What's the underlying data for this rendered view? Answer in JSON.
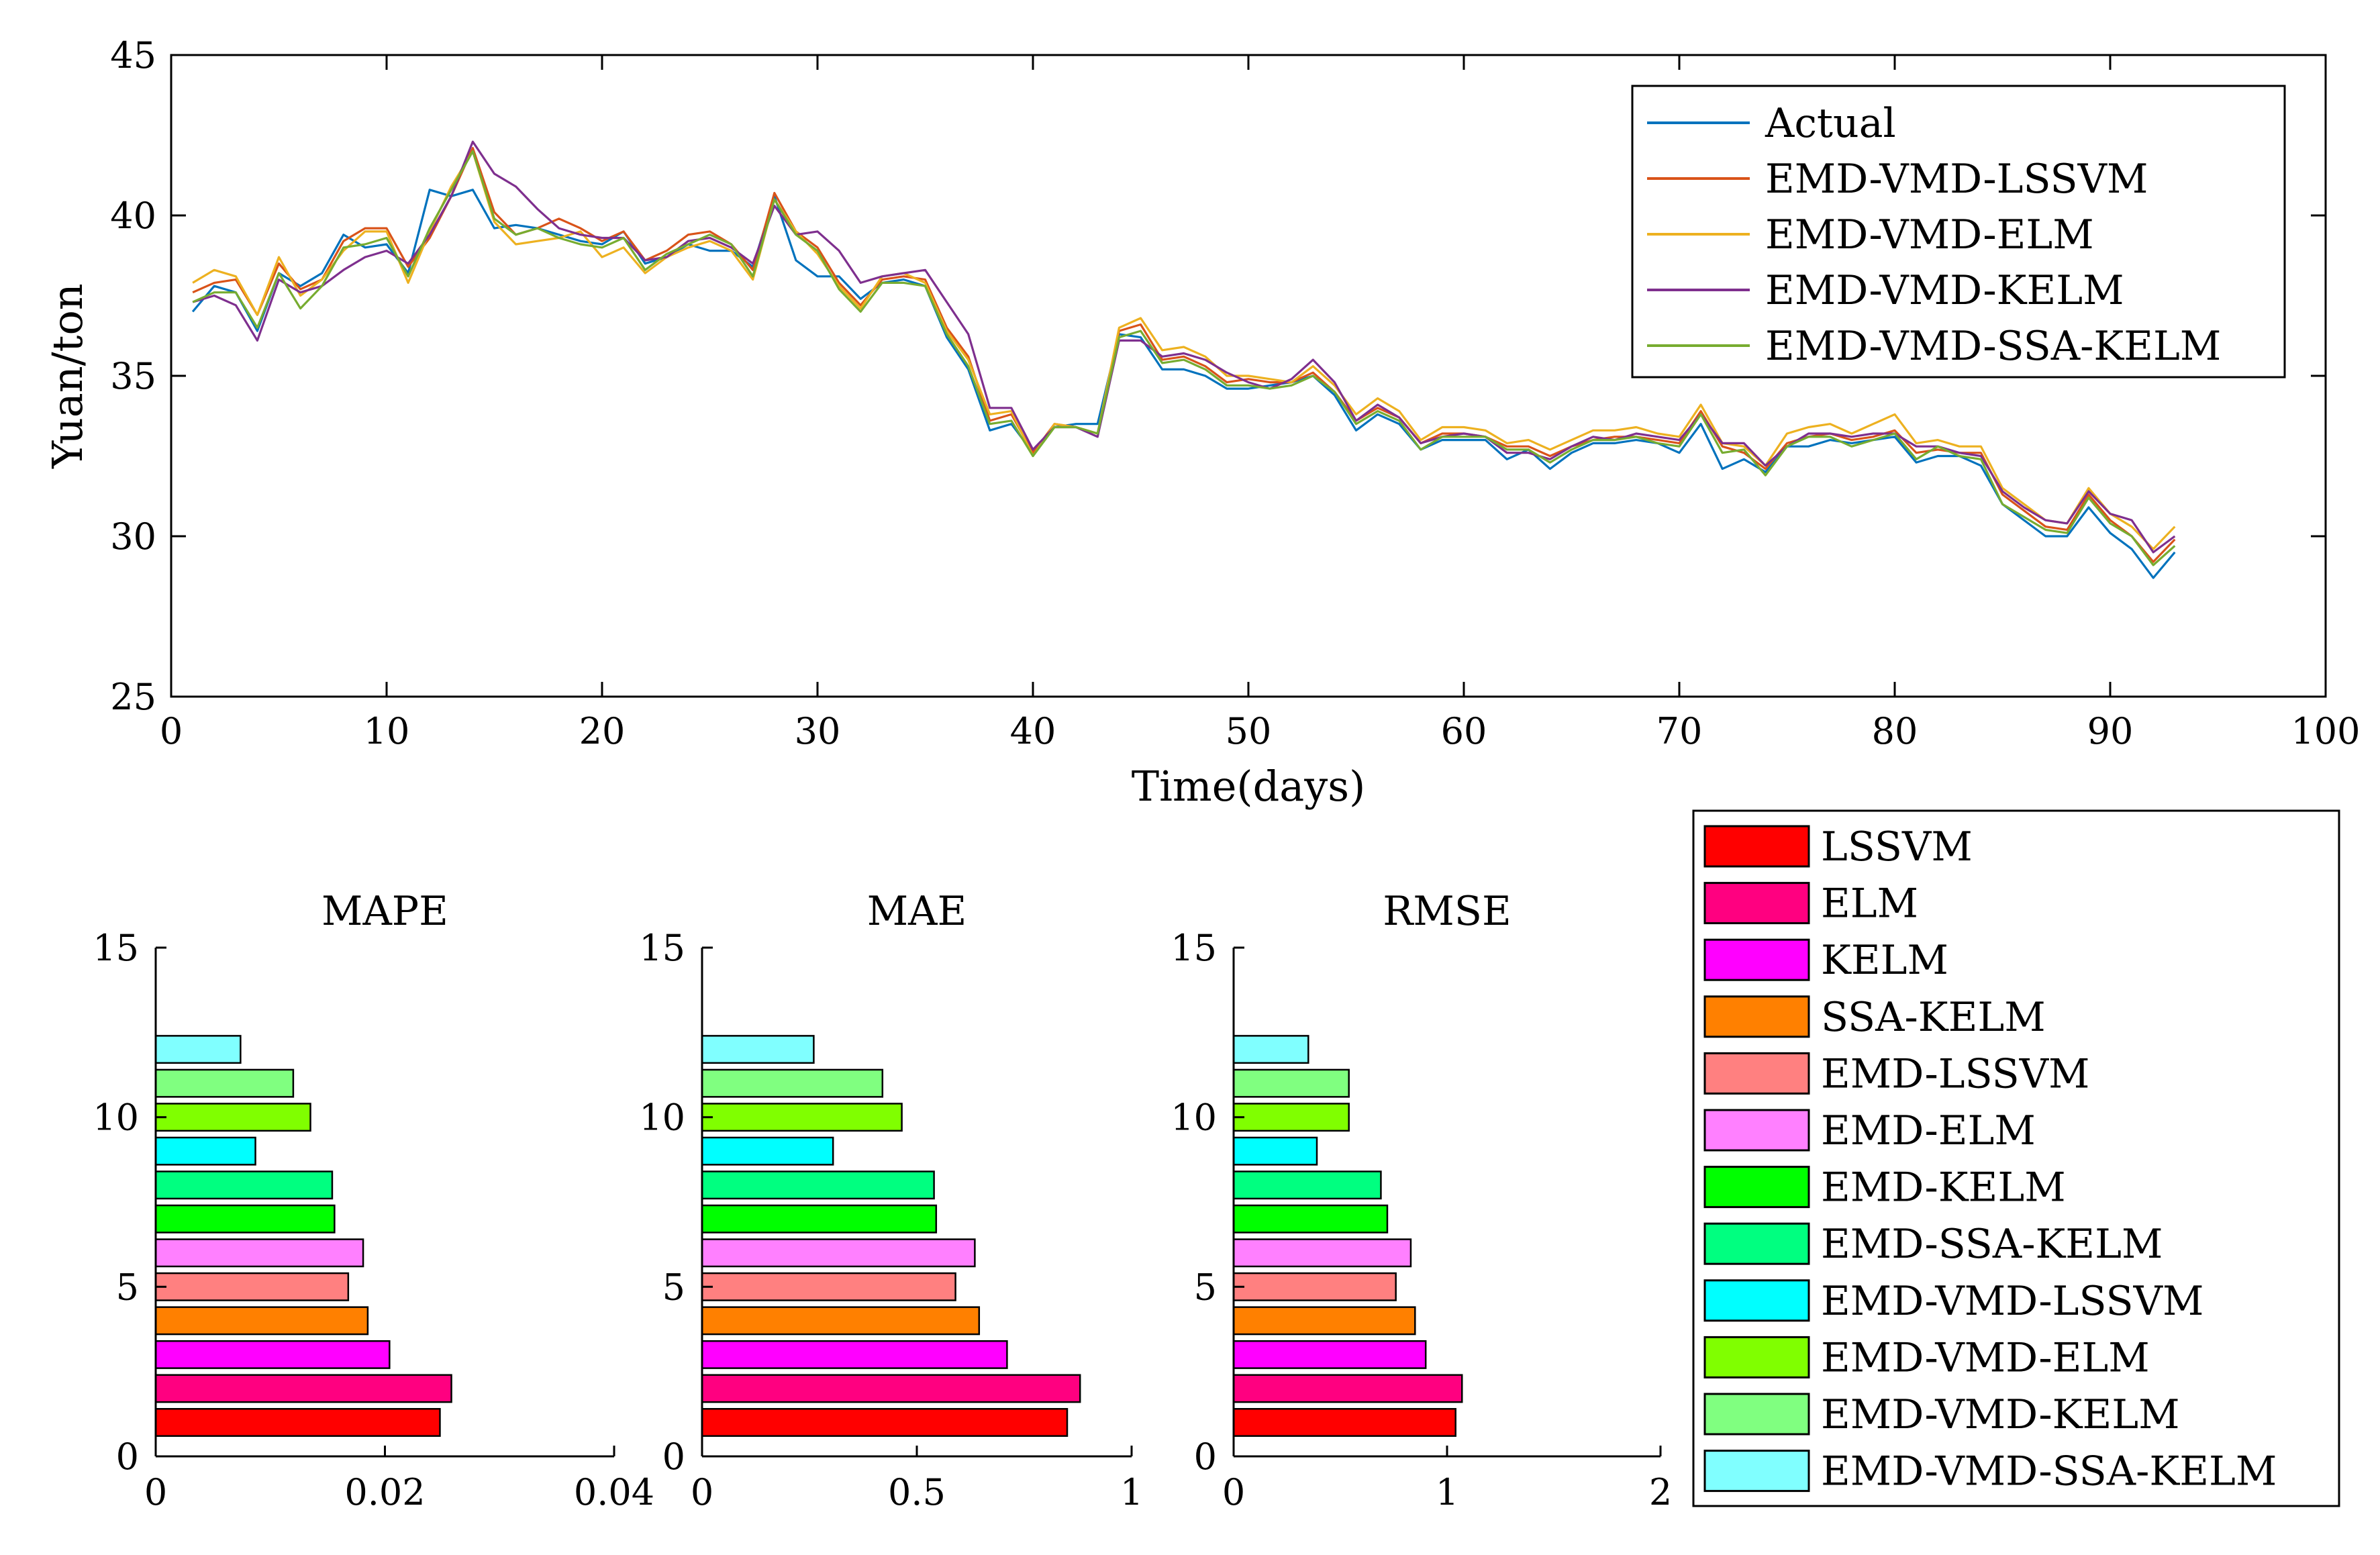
{
  "chart_data": [
    {
      "type": "line",
      "title": "",
      "xlabel": "Time(days)",
      "ylabel": "Yuan/ton",
      "xlim": [
        0,
        100
      ],
      "ylim": [
        25,
        45
      ],
      "xticks": [
        0,
        10,
        20,
        30,
        40,
        50,
        60,
        70,
        80,
        90,
        100
      ],
      "yticks": [
        25,
        30,
        35,
        40,
        45
      ],
      "grid": false,
      "legend_position": "top-right",
      "x": [
        1,
        2,
        3,
        4,
        5,
        6,
        7,
        8,
        9,
        10,
        11,
        12,
        13,
        14,
        15,
        16,
        17,
        18,
        19,
        20,
        21,
        22,
        23,
        24,
        25,
        26,
        27,
        28,
        29,
        30,
        31,
        32,
        33,
        34,
        35,
        36,
        37,
        38,
        39,
        40,
        41,
        42,
        43,
        44,
        45,
        46,
        47,
        48,
        49,
        50,
        51,
        52,
        53,
        54,
        55,
        56,
        57,
        58,
        59,
        60,
        61,
        62,
        63,
        64,
        65,
        66,
        67,
        68,
        69,
        70,
        71,
        72,
        73,
        74,
        75,
        76,
        77,
        78,
        79,
        80,
        81,
        82,
        83,
        84,
        85,
        86,
        87,
        88,
        89,
        90,
        91,
        92,
        93
      ],
      "series": [
        {
          "name": "Actual",
          "color": "#0072BD",
          "values": [
            37.0,
            37.8,
            37.6,
            36.4,
            38.2,
            37.8,
            38.2,
            39.4,
            39.0,
            39.1,
            38.2,
            40.8,
            40.6,
            40.8,
            39.6,
            39.7,
            39.6,
            39.4,
            39.2,
            39.1,
            39.5,
            38.5,
            38.7,
            39.1,
            38.9,
            38.9,
            38.4,
            40.6,
            38.6,
            38.1,
            38.1,
            37.4,
            37.9,
            38.0,
            37.8,
            36.2,
            35.2,
            33.3,
            33.5,
            32.6,
            33.4,
            33.5,
            33.5,
            36.3,
            36.2,
            35.2,
            35.2,
            35.0,
            34.6,
            34.6,
            34.7,
            34.8,
            35.0,
            34.4,
            33.3,
            33.8,
            33.5,
            32.7,
            33.0,
            33.0,
            33.0,
            32.4,
            32.7,
            32.1,
            32.6,
            32.9,
            32.9,
            33.0,
            32.9,
            32.6,
            33.5,
            32.1,
            32.4,
            32.0,
            32.8,
            32.8,
            33.0,
            32.9,
            33.0,
            33.1,
            32.3,
            32.5,
            32.5,
            32.2,
            31.0,
            30.5,
            30.0,
            30.0,
            30.9,
            30.1,
            29.6,
            28.7,
            29.5
          ]
        },
        {
          "name": "EMD-VMD-LSSVM",
          "color": "#D95319",
          "values": [
            37.6,
            37.9,
            38.0,
            36.9,
            38.5,
            37.7,
            38.0,
            39.2,
            39.6,
            39.6,
            38.4,
            39.3,
            40.6,
            42.1,
            40.1,
            39.4,
            39.6,
            39.9,
            39.6,
            39.2,
            39.5,
            38.6,
            38.9,
            39.4,
            39.5,
            39.1,
            38.3,
            40.7,
            39.5,
            39.0,
            37.9,
            37.2,
            38.0,
            38.1,
            38.0,
            36.5,
            35.6,
            33.6,
            33.8,
            32.6,
            33.5,
            33.4,
            33.2,
            36.4,
            36.6,
            35.5,
            35.6,
            35.3,
            34.8,
            34.9,
            34.8,
            34.8,
            35.1,
            34.5,
            33.6,
            34.0,
            33.7,
            32.9,
            33.2,
            33.2,
            33.1,
            32.8,
            32.8,
            32.5,
            32.8,
            33.0,
            33.1,
            33.1,
            33.0,
            32.9,
            33.9,
            32.8,
            32.6,
            32.1,
            32.9,
            33.1,
            33.2,
            33.0,
            33.1,
            33.3,
            32.6,
            32.7,
            32.6,
            32.6,
            31.3,
            30.8,
            30.3,
            30.2,
            31.3,
            30.5,
            30.0,
            29.2,
            29.9
          ]
        },
        {
          "name": "EMD-VMD-ELM",
          "color": "#EDB120",
          "values": [
            37.9,
            38.3,
            38.1,
            36.9,
            38.7,
            37.5,
            38.0,
            38.9,
            39.5,
            39.5,
            37.9,
            39.5,
            40.9,
            42.0,
            39.8,
            39.1,
            39.2,
            39.3,
            39.5,
            38.7,
            39.0,
            38.2,
            38.7,
            39.0,
            39.2,
            38.9,
            38.0,
            40.5,
            39.5,
            38.8,
            37.8,
            37.1,
            38.1,
            38.2,
            37.9,
            36.4,
            35.5,
            33.8,
            33.9,
            32.5,
            33.5,
            33.4,
            33.2,
            36.5,
            36.8,
            35.8,
            35.9,
            35.6,
            35.0,
            35.0,
            34.9,
            34.8,
            35.3,
            34.7,
            33.8,
            34.3,
            33.9,
            33.0,
            33.4,
            33.4,
            33.3,
            32.9,
            33.0,
            32.7,
            33.0,
            33.3,
            33.3,
            33.4,
            33.2,
            33.1,
            34.1,
            32.9,
            32.8,
            32.2,
            33.2,
            33.4,
            33.5,
            33.2,
            33.5,
            33.8,
            32.9,
            33.0,
            32.8,
            32.8,
            31.5,
            31.0,
            30.5,
            30.4,
            31.5,
            30.7,
            30.3,
            29.6,
            30.3
          ]
        },
        {
          "name": "EMD-VMD-KELM",
          "color": "#7E2F8E",
          "values": [
            37.3,
            37.5,
            37.2,
            36.1,
            38.0,
            37.6,
            37.8,
            38.3,
            38.7,
            38.9,
            38.5,
            39.4,
            40.6,
            42.3,
            41.3,
            40.9,
            40.2,
            39.6,
            39.4,
            39.3,
            39.3,
            38.6,
            38.7,
            39.2,
            39.3,
            39.0,
            38.5,
            40.3,
            39.4,
            39.5,
            38.9,
            37.9,
            38.1,
            38.2,
            38.3,
            37.3,
            36.3,
            34.0,
            34.0,
            32.7,
            33.4,
            33.4,
            33.1,
            36.1,
            36.1,
            35.6,
            35.7,
            35.5,
            35.1,
            34.8,
            34.6,
            34.9,
            35.5,
            34.8,
            33.6,
            34.1,
            33.7,
            32.9,
            33.1,
            33.2,
            33.1,
            32.6,
            32.6,
            32.4,
            32.8,
            33.1,
            33.0,
            33.2,
            33.1,
            33.0,
            33.8,
            32.9,
            32.9,
            32.2,
            32.8,
            33.2,
            33.2,
            33.1,
            33.2,
            33.2,
            32.8,
            32.8,
            32.6,
            32.5,
            31.4,
            30.9,
            30.5,
            30.4,
            31.4,
            30.7,
            30.5,
            29.5,
            30.0
          ]
        },
        {
          "name": "EMD-VMD-SSA-KELM",
          "color": "#77AC30",
          "values": [
            37.3,
            37.6,
            37.6,
            36.5,
            38.2,
            37.1,
            37.8,
            39.0,
            39.1,
            39.3,
            38.1,
            39.6,
            40.8,
            42.0,
            39.9,
            39.4,
            39.6,
            39.3,
            39.1,
            39.0,
            39.3,
            38.3,
            38.8,
            39.1,
            39.4,
            39.1,
            38.1,
            40.5,
            39.4,
            38.9,
            37.7,
            37.0,
            37.9,
            37.9,
            37.8,
            36.3,
            35.3,
            33.5,
            33.6,
            32.5,
            33.4,
            33.4,
            33.2,
            36.2,
            36.4,
            35.4,
            35.5,
            35.2,
            34.7,
            34.7,
            34.6,
            34.7,
            35.0,
            34.5,
            33.5,
            33.9,
            33.6,
            32.7,
            33.1,
            33.1,
            33.1,
            32.7,
            32.7,
            32.3,
            32.7,
            33.0,
            33.0,
            33.1,
            32.9,
            32.8,
            33.8,
            32.6,
            32.7,
            31.9,
            32.8,
            33.1,
            33.1,
            32.8,
            33.0,
            33.2,
            32.4,
            32.8,
            32.5,
            32.4,
            31.0,
            30.6,
            30.2,
            30.1,
            31.2,
            30.4,
            30.0,
            29.1,
            29.7
          ]
        }
      ]
    },
    {
      "type": "bar",
      "orientation": "horizontal",
      "title": "MAPE",
      "xlim": [
        0,
        0.04
      ],
      "ylim": [
        0,
        15
      ],
      "xticks": [
        "0",
        "0.02",
        "0.04"
      ],
      "yticks": [
        0,
        5,
        10,
        15
      ],
      "categories": [
        "LSSVM",
        "ELM",
        "KELM",
        "SSA-KELM",
        "EMD-LSSVM",
        "EMD-ELM",
        "EMD-KELM",
        "EMD-SSA-KELM",
        "EMD-VMD-LSSVM",
        "EMD-VMD-ELM",
        "EMD-VMD-KELM",
        "EMD-VMD-SSA-KELM"
      ],
      "values": [
        0.0248,
        0.0258,
        0.0204,
        0.0185,
        0.0168,
        0.0181,
        0.0156,
        0.0154,
        0.0087,
        0.0135,
        0.012,
        0.0074
      ]
    },
    {
      "type": "bar",
      "orientation": "horizontal",
      "title": "MAE",
      "xlim": [
        0,
        1
      ],
      "ylim": [
        0,
        15
      ],
      "xticks": [
        "0",
        "0.5",
        "1"
      ],
      "yticks": [
        0,
        5,
        10,
        15
      ],
      "categories": [
        "LSSVM",
        "ELM",
        "KELM",
        "SSA-KELM",
        "EMD-LSSVM",
        "EMD-ELM",
        "EMD-KELM",
        "EMD-SSA-KELM",
        "EMD-VMD-LSSVM",
        "EMD-VMD-ELM",
        "EMD-VMD-KELM",
        "EMD-VMD-SSA-KELM"
      ],
      "values": [
        0.85,
        0.88,
        0.71,
        0.645,
        0.59,
        0.635,
        0.545,
        0.54,
        0.305,
        0.465,
        0.42,
        0.26
      ]
    },
    {
      "type": "bar",
      "orientation": "horizontal",
      "title": "RMSE",
      "xlim": [
        0,
        2
      ],
      "ylim": [
        0,
        15
      ],
      "xticks": [
        "0",
        "1",
        "2"
      ],
      "yticks": [
        0,
        5,
        10,
        15
      ],
      "categories": [
        "LSSVM",
        "ELM",
        "KELM",
        "SSA-KELM",
        "EMD-LSSVM",
        "EMD-ELM",
        "EMD-KELM",
        "EMD-SSA-KELM",
        "EMD-VMD-LSSVM",
        "EMD-VMD-ELM",
        "EMD-VMD-KELM",
        "EMD-VMD-SSA-KELM"
      ],
      "values": [
        1.04,
        1.07,
        0.9,
        0.85,
        0.76,
        0.83,
        0.72,
        0.69,
        0.39,
        0.54,
        0.54,
        0.35
      ]
    }
  ],
  "bar_legend": {
    "position": "bottom-right",
    "items": [
      {
        "label": "LSSVM",
        "color": "#FF0000"
      },
      {
        "label": "ELM",
        "color": "#FF0080"
      },
      {
        "label": "KELM",
        "color": "#FF00FF"
      },
      {
        "label": "SSA-KELM",
        "color": "#FF8000"
      },
      {
        "label": "EMD-LSSVM",
        "color": "#FF8080"
      },
      {
        "label": "EMD-ELM",
        "color": "#FF80FF"
      },
      {
        "label": "EMD-KELM",
        "color": "#00FF00"
      },
      {
        "label": "EMD-SSA-KELM",
        "color": "#00FF80"
      },
      {
        "label": "EMD-VMD-LSSVM",
        "color": "#00FFFF"
      },
      {
        "label": "EMD-VMD-ELM",
        "color": "#80FF00"
      },
      {
        "label": "EMD-VMD-KELM",
        "color": "#80FF80"
      },
      {
        "label": "EMD-VMD-SSA-KELM",
        "color": "#80FFFF"
      }
    ]
  }
}
